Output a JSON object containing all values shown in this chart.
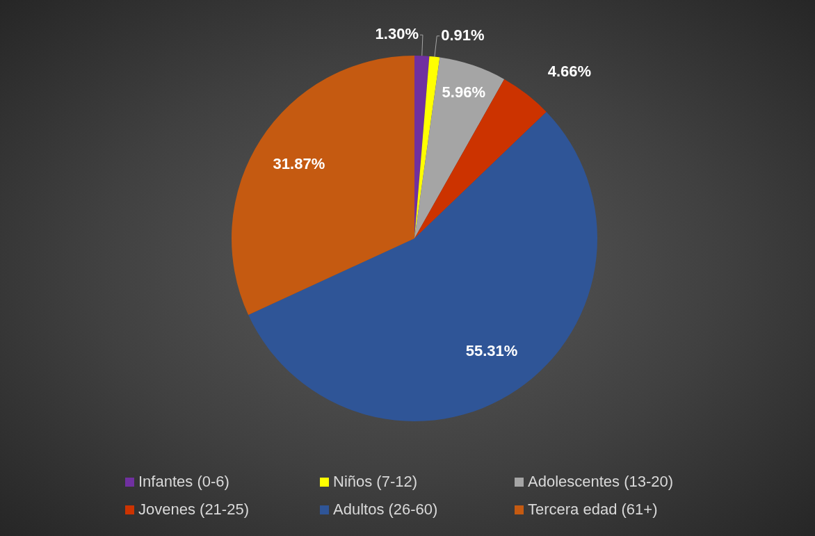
{
  "chart_data": {
    "type": "pie",
    "categories": [
      "Infantes (0-6)",
      "Niños (7-12)",
      "Adolescentes (13-20)",
      "Jovenes (21-25)",
      "Adultos (26-60)",
      "Tercera edad (61+)"
    ],
    "values": [
      1.3,
      0.91,
      5.96,
      4.66,
      55.31,
      31.87
    ],
    "colors": [
      "#7030a0",
      "#ffff00",
      "#a5a5a5",
      "#cc3300",
      "#2f5597",
      "#c55a11"
    ],
    "value_labels": [
      "1.30%",
      "0.91%",
      "5.96%",
      "4.66%",
      "55.31%",
      "31.87%"
    ],
    "legend": "bottom"
  }
}
